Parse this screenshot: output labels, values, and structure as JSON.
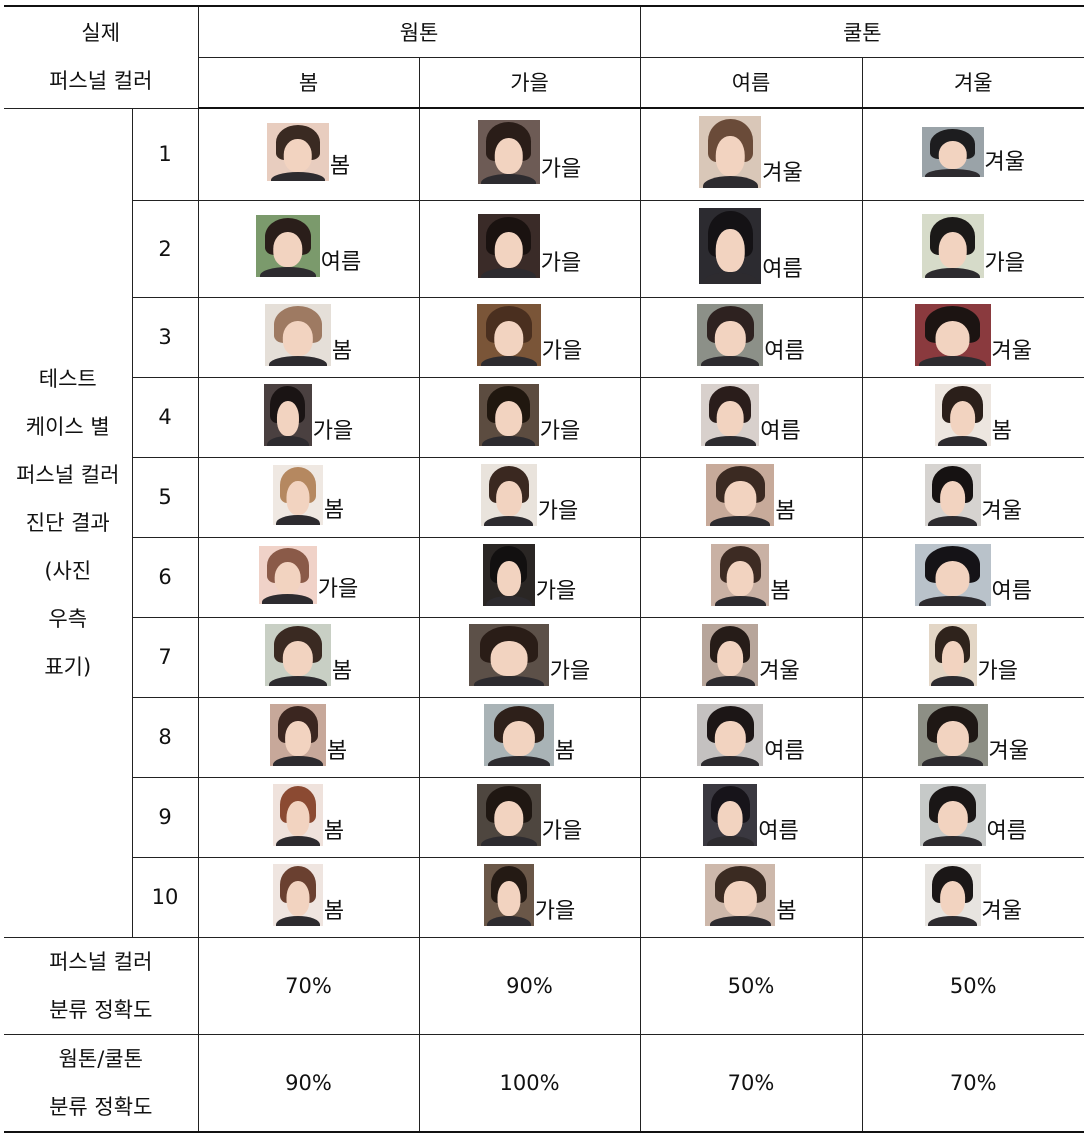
{
  "header": {
    "corner": [
      "실제",
      "퍼스널 컬러"
    ],
    "groups": [
      "웜톤",
      "쿨톤"
    ],
    "seasons": [
      "봄",
      "가을",
      "여름",
      "겨울"
    ]
  },
  "side_label": [
    "테스트",
    "케이스 별",
    "퍼스널 컬러",
    "진단 결과",
    "(사진",
    "우측",
    "표기)"
  ],
  "rows": [
    {
      "n": "1",
      "cells": [
        {
          "r": "봄",
          "w": 62,
          "h": 58,
          "bg": "#e8cdbf",
          "hair": "#3a2a22"
        },
        {
          "r": "가을",
          "w": 62,
          "h": 64,
          "bg": "#6d5b55",
          "hair": "#2a1d18"
        },
        {
          "r": "겨울",
          "w": 62,
          "h": 72,
          "bg": "#d9c7b8",
          "hair": "#6a4b39"
        },
        {
          "r": "겨울",
          "w": 62,
          "h": 50,
          "bg": "#9aa3a8",
          "hair": "#1d1d1f"
        }
      ]
    },
    {
      "n": "2",
      "cells": [
        {
          "r": "여름",
          "w": 64,
          "h": 62,
          "bg": "#7b9a6c",
          "hair": "#2a1e1a"
        },
        {
          "r": "가을",
          "w": 62,
          "h": 64,
          "bg": "#3a2b28",
          "hair": "#1a1210"
        },
        {
          "r": "여름",
          "w": 62,
          "h": 76,
          "bg": "#2c2b30",
          "hair": "#141215"
        },
        {
          "r": "가을",
          "w": 62,
          "h": 64,
          "bg": "#d6dbc9",
          "hair": "#1b1918"
        }
      ]
    },
    {
      "n": "3",
      "cells": [
        {
          "r": "봄",
          "w": 66,
          "h": 62,
          "bg": "#e5dfd8",
          "hair": "#9e7a62"
        },
        {
          "r": "가을",
          "w": 64,
          "h": 62,
          "bg": "#7a5538",
          "hair": "#4a2f1f"
        },
        {
          "r": "여름",
          "w": 66,
          "h": 62,
          "bg": "#8c9088",
          "hair": "#2e2220"
        },
        {
          "r": "겨울",
          "w": 76,
          "h": 62,
          "bg": "#8a3a3e",
          "hair": "#1c1412"
        }
      ]
    },
    {
      "n": "4",
      "cells": [
        {
          "r": "가을",
          "w": 48,
          "h": 62,
          "bg": "#4a4040",
          "hair": "#1a1414"
        },
        {
          "r": "가을",
          "w": 60,
          "h": 62,
          "bg": "#5c4c40",
          "hair": "#20170f"
        },
        {
          "r": "여름",
          "w": 58,
          "h": 62,
          "bg": "#d8d0cc",
          "hair": "#2a1d1b"
        },
        {
          "r": "봄",
          "w": 56,
          "h": 62,
          "bg": "#ede6e0",
          "hair": "#2b1f1a"
        }
      ]
    },
    {
      "n": "5",
      "cells": [
        {
          "r": "봄",
          "w": 50,
          "h": 60,
          "bg": "#efe8e2",
          "hair": "#b58860"
        },
        {
          "r": "가을",
          "w": 56,
          "h": 62,
          "bg": "#e9e3dc",
          "hair": "#3a2820"
        },
        {
          "r": "봄",
          "w": 68,
          "h": 62,
          "bg": "#c7aa9a",
          "hair": "#3b2a22"
        },
        {
          "r": "겨울",
          "w": 56,
          "h": 62,
          "bg": "#d6d3d0",
          "hair": "#161212"
        }
      ]
    },
    {
      "n": "6",
      "cells": [
        {
          "r": "가을",
          "w": 58,
          "h": 58,
          "bg": "#f0d2c8",
          "hair": "#8a5a48"
        },
        {
          "r": "가을",
          "w": 52,
          "h": 62,
          "bg": "#2a2624",
          "hair": "#121010"
        },
        {
          "r": "봄",
          "w": 58,
          "h": 62,
          "bg": "#c9b1a4",
          "hair": "#3d2b23"
        },
        {
          "r": "여름",
          "w": 76,
          "h": 62,
          "bg": "#b9c2ca",
          "hair": "#151317"
        }
      ]
    },
    {
      "n": "7",
      "cells": [
        {
          "r": "봄",
          "w": 66,
          "h": 62,
          "bg": "#c8cfc4",
          "hair": "#3a2a22"
        },
        {
          "r": "가을",
          "w": 80,
          "h": 62,
          "bg": "#5c5048",
          "hair": "#2a1d17"
        },
        {
          "r": "겨울",
          "w": 56,
          "h": 62,
          "bg": "#b7a59a",
          "hair": "#261c18"
        },
        {
          "r": "가을",
          "w": 48,
          "h": 62,
          "bg": "#e3d6c6",
          "hair": "#2f231c"
        }
      ]
    },
    {
      "n": "8",
      "cells": [
        {
          "r": "봄",
          "w": 56,
          "h": 62,
          "bg": "#c7a89a",
          "hair": "#3b2620"
        },
        {
          "r": "봄",
          "w": 70,
          "h": 62,
          "bg": "#a9b3b6",
          "hair": "#2e201a"
        },
        {
          "r": "여름",
          "w": 66,
          "h": 62,
          "bg": "#c4c1c0",
          "hair": "#1c1616"
        },
        {
          "r": "겨울",
          "w": 70,
          "h": 62,
          "bg": "#8d8f85",
          "hair": "#1f1815"
        }
      ]
    },
    {
      "n": "9",
      "cells": [
        {
          "r": "봄",
          "w": 50,
          "h": 62,
          "bg": "#efe2dc",
          "hair": "#8b4a32"
        },
        {
          "r": "가을",
          "w": 64,
          "h": 62,
          "bg": "#4e463f",
          "hair": "#1f1712"
        },
        {
          "r": "여름",
          "w": 54,
          "h": 62,
          "bg": "#3a3840",
          "hair": "#17141a"
        },
        {
          "r": "여름",
          "w": 66,
          "h": 62,
          "bg": "#c6c9c8",
          "hair": "#1a1616"
        }
      ]
    },
    {
      "n": "10",
      "cells": [
        {
          "r": "봄",
          "w": 50,
          "h": 62,
          "bg": "#efe5e0",
          "hair": "#6a4030"
        },
        {
          "r": "가을",
          "w": 50,
          "h": 62,
          "bg": "#6a5748",
          "hair": "#241a14"
        },
        {
          "r": "봄",
          "w": 70,
          "h": 62,
          "bg": "#cdb8ab",
          "hair": "#3b2b22"
        },
        {
          "r": "겨울",
          "w": 56,
          "h": 62,
          "bg": "#e7e4e0",
          "hair": "#1b1717"
        }
      ]
    }
  ],
  "summary": [
    {
      "label": [
        "퍼스널 컬러",
        "분류 정확도"
      ],
      "values": [
        "70%",
        "90%",
        "50%",
        "50%"
      ]
    },
    {
      "label": [
        "웜톤/쿨톤",
        "분류 정확도"
      ],
      "values": [
        "90%",
        "100%",
        "70%",
        "70%"
      ]
    }
  ],
  "colors": {
    "border": "#222222",
    "text": "#111111",
    "skin": "#f2d3c0",
    "shirt": "#2d2b2f"
  }
}
